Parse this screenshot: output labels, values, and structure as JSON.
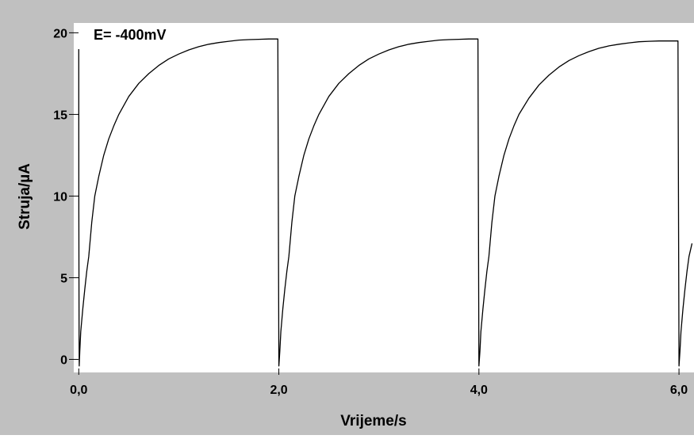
{
  "chart_data": {
    "type": "line",
    "title": "",
    "xlabel": "Vrijeme/s",
    "ylabel": "Struja/µA",
    "annotation": "E= -400mV",
    "xlim": [
      -0.05,
      6.15
    ],
    "ylim": [
      -0.8,
      20.6
    ],
    "x_ticks": [
      {
        "value": 0,
        "label": "0,0"
      },
      {
        "value": 2,
        "label": "2,0"
      },
      {
        "value": 4,
        "label": "4,0"
      },
      {
        "value": 6,
        "label": "6,0"
      }
    ],
    "y_ticks": [
      {
        "value": 0,
        "label": "0"
      },
      {
        "value": 5,
        "label": "5"
      },
      {
        "value": 10,
        "label": "10"
      },
      {
        "value": 15,
        "label": "15"
      },
      {
        "value": 20,
        "label": "20"
      }
    ],
    "grid": false,
    "colors": {
      "line": "#000000",
      "frame": "#c0c0c0",
      "plot_bg": "#ffffff"
    },
    "series": [
      {
        "x": [
          0.0,
          0.001,
          0.003,
          0.005,
          0.01,
          0.02,
          0.04,
          0.06,
          0.08,
          0.1,
          0.13,
          0.16,
          0.2,
          0.25,
          0.3,
          0.35,
          0.4,
          0.5,
          0.6,
          0.7,
          0.8,
          0.9,
          1.0,
          1.1,
          1.2,
          1.3,
          1.4,
          1.5,
          1.6,
          1.7,
          1.8,
          1.9,
          1.99,
          2.0,
          2.01,
          2.02,
          2.04,
          2.06,
          2.08,
          2.1,
          2.13,
          2.16,
          2.2,
          2.25,
          2.3,
          2.35,
          2.4,
          2.5,
          2.6,
          2.7,
          2.8,
          2.9,
          3.0,
          3.1,
          3.2,
          3.3,
          3.4,
          3.5,
          3.6,
          3.7,
          3.8,
          3.9,
          3.99,
          4.0,
          4.01,
          4.02,
          4.04,
          4.06,
          4.08,
          4.1,
          4.13,
          4.16,
          4.2,
          4.25,
          4.3,
          4.35,
          4.4,
          4.5,
          4.6,
          4.7,
          4.8,
          4.9,
          5.0,
          5.1,
          5.2,
          5.3,
          5.4,
          5.5,
          5.6,
          5.7,
          5.8,
          5.9,
          5.99,
          6.0,
          6.01,
          6.02,
          6.04,
          6.06,
          6.08,
          6.1,
          6.13
        ],
        "y": [
          19.0,
          9.0,
          1.5,
          -0.4,
          0.5,
          1.7,
          3.1,
          4.3,
          5.4,
          6.3,
          8.4,
          10.0,
          11.2,
          12.5,
          13.5,
          14.3,
          15.0,
          16.1,
          16.9,
          17.5,
          18.0,
          18.4,
          18.7,
          18.95,
          19.15,
          19.3,
          19.4,
          19.48,
          19.55,
          19.58,
          19.6,
          19.62,
          19.62,
          -0.4,
          0.5,
          1.7,
          3.1,
          4.3,
          5.4,
          6.3,
          8.4,
          10.0,
          11.2,
          12.5,
          13.5,
          14.3,
          15.0,
          16.1,
          16.9,
          17.5,
          18.0,
          18.4,
          18.7,
          18.95,
          19.15,
          19.3,
          19.4,
          19.48,
          19.55,
          19.58,
          19.6,
          19.62,
          19.62,
          -0.4,
          0.5,
          1.7,
          3.1,
          4.3,
          5.4,
          6.3,
          8.4,
          10.0,
          11.2,
          12.5,
          13.5,
          14.3,
          15.0,
          16.0,
          16.8,
          17.4,
          17.9,
          18.3,
          18.6,
          18.85,
          19.05,
          19.2,
          19.3,
          19.38,
          19.45,
          19.48,
          19.5,
          19.5,
          19.5,
          -0.4,
          0.5,
          1.7,
          3.1,
          4.3,
          5.4,
          6.3,
          7.1
        ]
      }
    ]
  }
}
